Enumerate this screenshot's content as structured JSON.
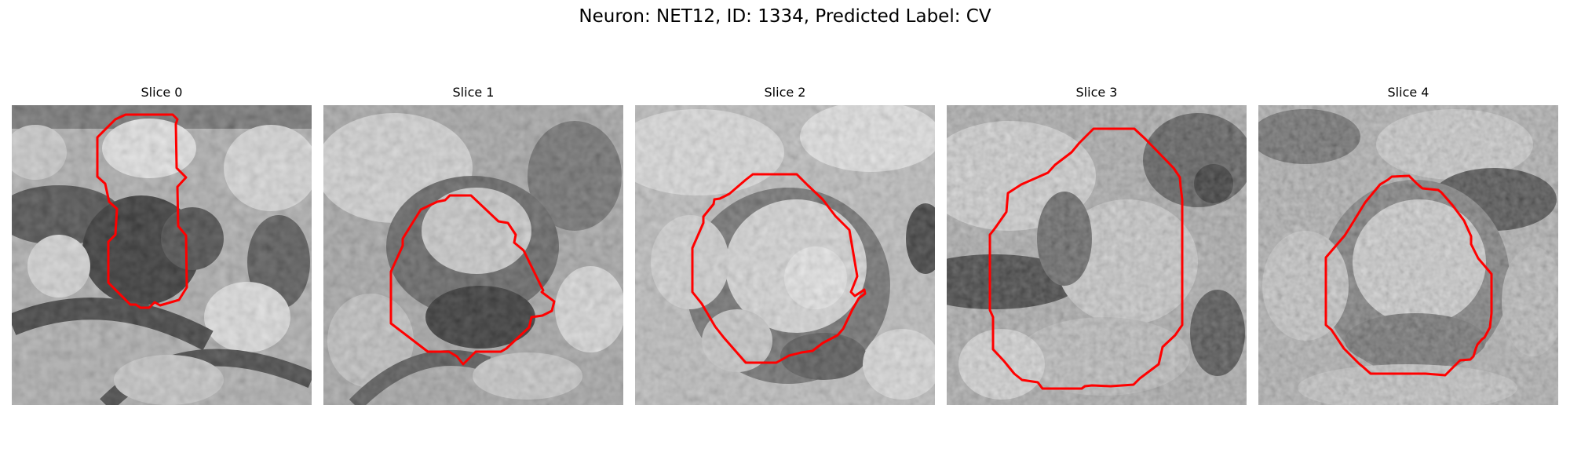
{
  "figure": {
    "title": "Neuron: NET12, ID: 1334, Predicted Label: CV"
  },
  "colors": {
    "contour": "#ff0000",
    "background": "#ffffff"
  },
  "panels": [
    {
      "label": "Slice 0"
    },
    {
      "label": "Slice 1"
    },
    {
      "label": "Slice 2"
    },
    {
      "label": "Slice 3"
    },
    {
      "label": "Slice 4"
    }
  ]
}
